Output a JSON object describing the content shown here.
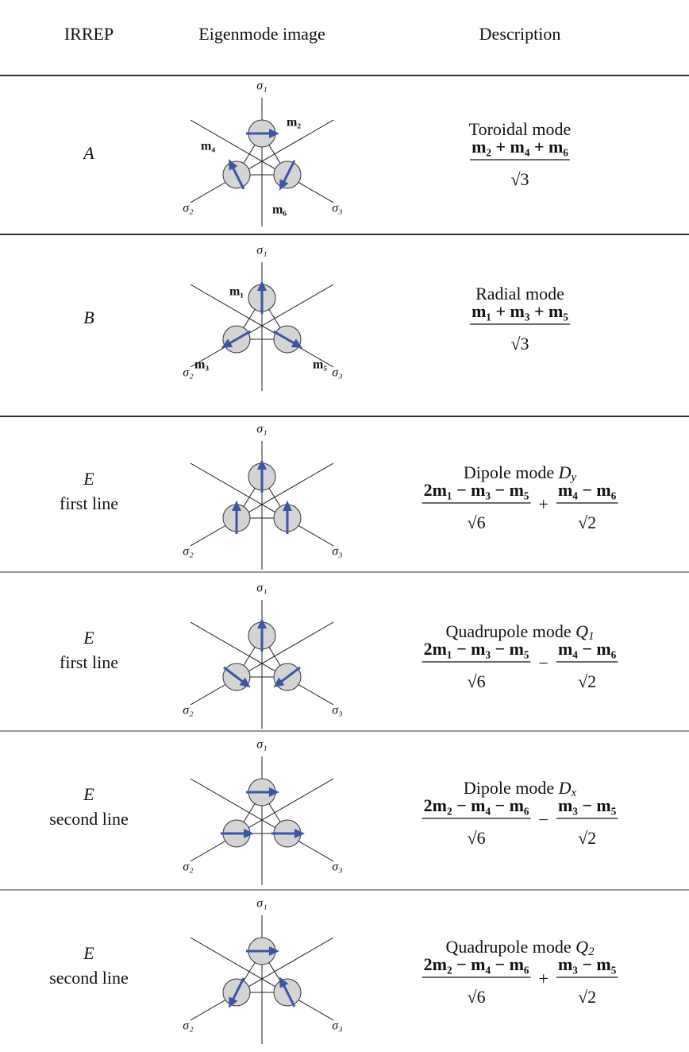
{
  "header": {
    "irrep": "IRREP",
    "image": "Eigenmode image",
    "description": "Description"
  },
  "rows": [
    {
      "irrep": "A",
      "axis_labels": [
        "σ₁",
        "σ₂",
        "σ₃"
      ],
      "moment_labels": [
        "m₂",
        "m₄",
        "m₆"
      ],
      "description": {
        "mode": "Toroidal mode",
        "fractions": [
          {
            "numerator": "m₂ + m₄ + m₆",
            "denominator": "√3"
          }
        ]
      }
    },
    {
      "irrep": "B",
      "axis_labels": [
        "σ₁",
        "σ₂",
        "σ₃"
      ],
      "moment_labels": [
        "m₁",
        "m₃",
        "m₅"
      ],
      "description": {
        "mode": "Radial mode",
        "fractions": [
          {
            "numerator": "m₁ + m₃ + m₅",
            "denominator": "√3"
          }
        ]
      }
    },
    {
      "irrep": "E",
      "line": "first line",
      "axis_labels": [
        "σ₁",
        "σ₂",
        "σ₃"
      ],
      "description": {
        "mode": "Dipole mode",
        "mode_symbol": "D",
        "mode_subscript": "y",
        "fractions": [
          {
            "numerator": "2m₁ − m₃ − m₅",
            "denominator": "√6"
          },
          {
            "numerator": "m₄ − m₆",
            "denominator": "√2"
          }
        ],
        "operator": "+"
      }
    },
    {
      "irrep": "E",
      "line": "first line",
      "axis_labels": [
        "σ₁",
        "σ₂",
        "σ₃"
      ],
      "description": {
        "mode": "Quadrupole mode",
        "mode_symbol": "Q",
        "mode_subscript": "1",
        "fractions": [
          {
            "numerator": "2m₁ − m₃ − m₅",
            "denominator": "√6"
          },
          {
            "numerator": "m₄ − m₆",
            "denominator": "√2"
          }
        ],
        "operator": "−"
      }
    },
    {
      "irrep": "E",
      "line": "second line",
      "axis_labels": [
        "σ₁",
        "σ₂",
        "σ₃"
      ],
      "description": {
        "mode": "Dipole mode",
        "mode_symbol": "D",
        "mode_subscript": "x",
        "fractions": [
          {
            "numerator": "2m₂ − m₄ − m₆",
            "denominator": "√6"
          },
          {
            "numerator": "m₃ − m₅",
            "denominator": "√2"
          }
        ],
        "operator": "−"
      }
    },
    {
      "irrep": "E",
      "line": "second line",
      "axis_labels": [
        "σ₁",
        "σ₂",
        "σ₃"
      ],
      "description": {
        "mode": "Quadrupole mode",
        "mode_symbol": "Q",
        "mode_subscript": "2",
        "fractions": [
          {
            "numerator": "2m₂ − m₄ − m₆",
            "denominator": "√6"
          },
          {
            "numerator": "m₃ − m₅",
            "denominator": "√2"
          }
        ],
        "operator": "+"
      }
    }
  ]
}
